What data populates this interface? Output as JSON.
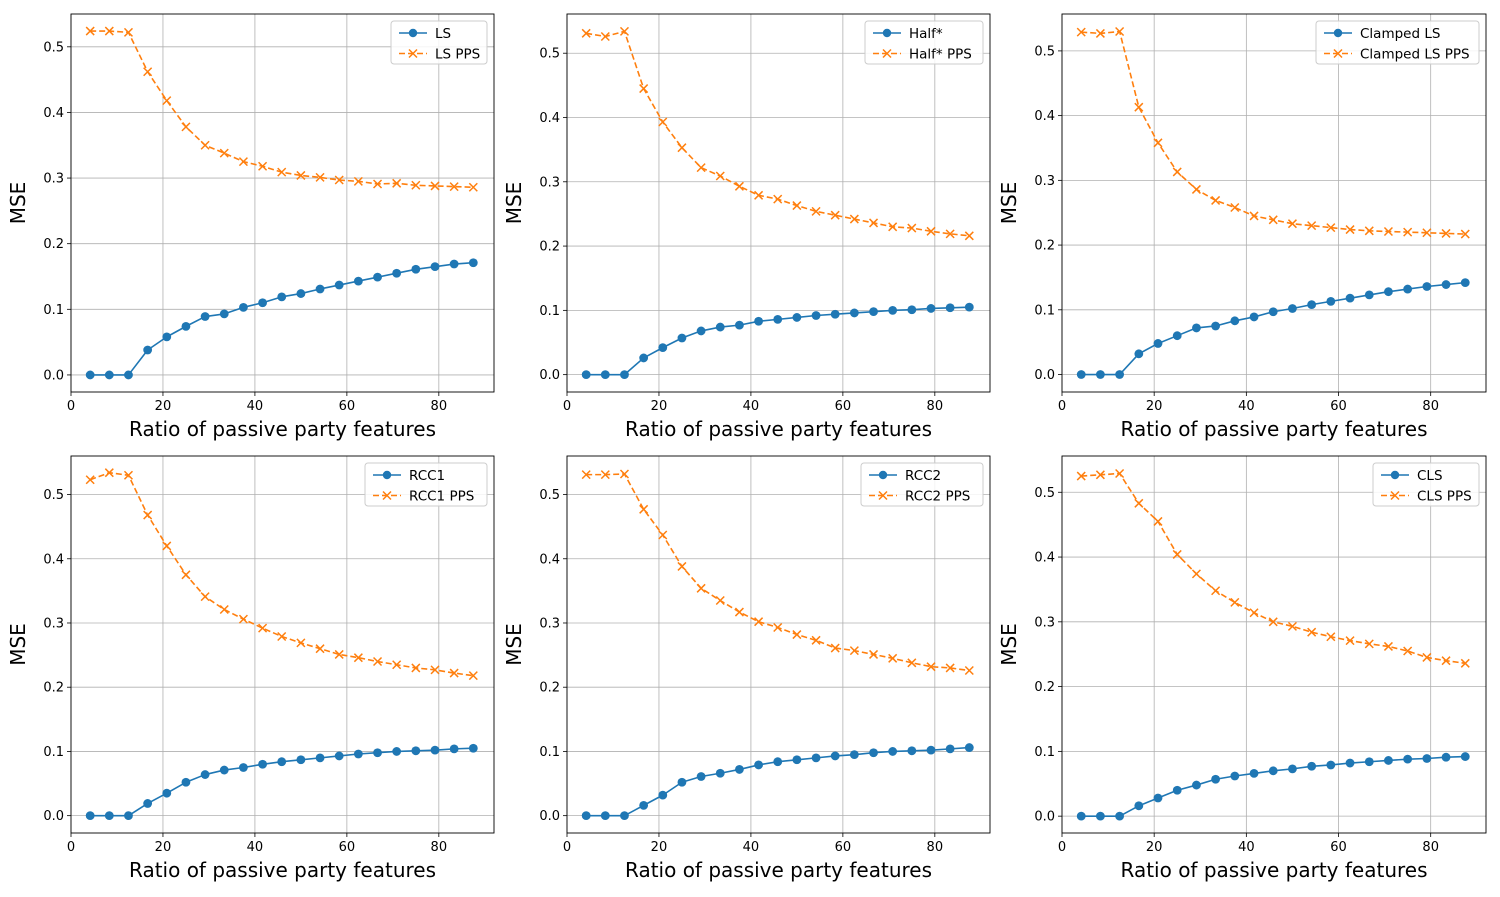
{
  "figure": {
    "colors": {
      "primary": "#1f77b4",
      "pps": "#ff7f0e",
      "grid": "#b0b0b0",
      "axis": "#000000"
    }
  },
  "chart_data": [
    {
      "type": "line",
      "xlabel": "Ratio of passive party features",
      "ylabel": "MSE",
      "xlim": [
        0,
        92
      ],
      "ylim": [
        -0.026,
        0.55
      ],
      "xticks": [
        0,
        20,
        40,
        60,
        80
      ],
      "yticks": [
        0.0,
        0.1,
        0.2,
        0.3,
        0.4,
        0.5
      ],
      "legend_position": "top-right",
      "x": [
        4.17,
        8.33,
        12.5,
        16.67,
        20.83,
        25,
        29.17,
        33.33,
        37.5,
        41.67,
        45.83,
        50,
        54.17,
        58.33,
        62.5,
        66.67,
        70.83,
        75,
        79.17,
        83.33,
        87.5
      ],
      "series": [
        {
          "name": "LS",
          "style": "solid",
          "marker": "o",
          "color": "#1f77b4",
          "values": [
            0.0,
            0.0,
            0.0,
            0.038,
            0.058,
            0.074,
            0.089,
            0.093,
            0.103,
            0.11,
            0.119,
            0.124,
            0.131,
            0.137,
            0.143,
            0.149,
            0.155,
            0.161,
            0.165,
            0.169,
            0.171
          ]
        },
        {
          "name": "LS PPS",
          "style": "dashed",
          "marker": "x",
          "color": "#ff7f0e",
          "values": [
            0.524,
            0.524,
            0.522,
            0.462,
            0.418,
            0.378,
            0.35,
            0.338,
            0.325,
            0.318,
            0.309,
            0.304,
            0.301,
            0.297,
            0.295,
            0.291,
            0.292,
            0.289,
            0.288,
            0.287,
            0.286
          ]
        }
      ]
    },
    {
      "type": "line",
      "xlabel": "Ratio of passive party features",
      "ylabel": "MSE",
      "xlim": [
        0,
        92
      ],
      "ylim": [
        -0.027,
        0.561
      ],
      "xticks": [
        0,
        20,
        40,
        60,
        80
      ],
      "yticks": [
        0.0,
        0.1,
        0.2,
        0.3,
        0.4,
        0.5
      ],
      "legend_position": "top-right",
      "x": [
        4.17,
        8.33,
        12.5,
        16.67,
        20.83,
        25,
        29.17,
        33.33,
        37.5,
        41.67,
        45.83,
        50,
        54.17,
        58.33,
        62.5,
        66.67,
        70.83,
        75,
        79.17,
        83.33,
        87.5
      ],
      "series": [
        {
          "name": "Half*",
          "style": "solid",
          "marker": "o",
          "color": "#1f77b4",
          "values": [
            0.0,
            0.0,
            0.0,
            0.026,
            0.042,
            0.057,
            0.068,
            0.074,
            0.077,
            0.083,
            0.086,
            0.089,
            0.092,
            0.094,
            0.096,
            0.098,
            0.1,
            0.101,
            0.103,
            0.104,
            0.105
          ]
        },
        {
          "name": "Half* PPS",
          "style": "dashed",
          "marker": "x",
          "color": "#ff7f0e",
          "values": [
            0.531,
            0.526,
            0.534,
            0.445,
            0.393,
            0.353,
            0.322,
            0.309,
            0.293,
            0.279,
            0.273,
            0.263,
            0.254,
            0.248,
            0.242,
            0.236,
            0.23,
            0.228,
            0.223,
            0.219,
            0.216
          ]
        }
      ]
    },
    {
      "type": "line",
      "xlabel": "Ratio of passive party features",
      "ylabel": "MSE",
      "xlim": [
        0,
        92
      ],
      "ylim": [
        -0.027,
        0.557
      ],
      "xticks": [
        0,
        20,
        40,
        60,
        80
      ],
      "yticks": [
        0.0,
        0.1,
        0.2,
        0.3,
        0.4,
        0.5
      ],
      "legend_position": "top-right",
      "x": [
        4.17,
        8.33,
        12.5,
        16.67,
        20.83,
        25,
        29.17,
        33.33,
        37.5,
        41.67,
        45.83,
        50,
        54.17,
        58.33,
        62.5,
        66.67,
        70.83,
        75,
        79.17,
        83.33,
        87.5
      ],
      "series": [
        {
          "name": "Clamped LS",
          "style": "solid",
          "marker": "o",
          "color": "#1f77b4",
          "values": [
            0.0,
            0.0,
            0.0,
            0.032,
            0.048,
            0.06,
            0.072,
            0.075,
            0.083,
            0.089,
            0.097,
            0.102,
            0.108,
            0.113,
            0.118,
            0.123,
            0.128,
            0.132,
            0.136,
            0.139,
            0.142
          ]
        },
        {
          "name": "Clamped LS PPS",
          "style": "dashed",
          "marker": "x",
          "color": "#ff7f0e",
          "values": [
            0.529,
            0.527,
            0.53,
            0.413,
            0.358,
            0.313,
            0.286,
            0.269,
            0.258,
            0.245,
            0.239,
            0.233,
            0.23,
            0.227,
            0.224,
            0.222,
            0.221,
            0.22,
            0.219,
            0.218,
            0.217
          ]
        }
      ]
    },
    {
      "type": "line",
      "xlabel": "Ratio of passive party features",
      "ylabel": "MSE",
      "xlim": [
        0,
        92
      ],
      "ylim": [
        -0.027,
        0.56
      ],
      "xticks": [
        0,
        20,
        40,
        60,
        80
      ],
      "yticks": [
        0.0,
        0.1,
        0.2,
        0.3,
        0.4,
        0.5
      ],
      "legend_position": "top-right",
      "x": [
        4.17,
        8.33,
        12.5,
        16.67,
        20.83,
        25,
        29.17,
        33.33,
        37.5,
        41.67,
        45.83,
        50,
        54.17,
        58.33,
        62.5,
        66.67,
        70.83,
        75,
        79.17,
        83.33,
        87.5
      ],
      "series": [
        {
          "name": "RCC1",
          "style": "solid",
          "marker": "o",
          "color": "#1f77b4",
          "values": [
            0.0,
            0.0,
            0.0,
            0.019,
            0.035,
            0.052,
            0.064,
            0.071,
            0.075,
            0.08,
            0.084,
            0.087,
            0.09,
            0.093,
            0.096,
            0.098,
            0.1,
            0.101,
            0.102,
            0.104,
            0.105
          ]
        },
        {
          "name": "RCC1 PPS",
          "style": "dashed",
          "marker": "x",
          "color": "#ff7f0e",
          "values": [
            0.523,
            0.534,
            0.53,
            0.468,
            0.42,
            0.375,
            0.341,
            0.321,
            0.306,
            0.292,
            0.279,
            0.269,
            0.26,
            0.251,
            0.246,
            0.24,
            0.235,
            0.23,
            0.227,
            0.222,
            0.218
          ]
        }
      ]
    },
    {
      "type": "line",
      "xlabel": "Ratio of passive party features",
      "ylabel": "MSE",
      "xlim": [
        0,
        92
      ],
      "ylim": [
        -0.027,
        0.56
      ],
      "xticks": [
        0,
        20,
        40,
        60,
        80
      ],
      "yticks": [
        0.0,
        0.1,
        0.2,
        0.3,
        0.4,
        0.5
      ],
      "legend_position": "top-right",
      "x": [
        4.17,
        8.33,
        12.5,
        16.67,
        20.83,
        25,
        29.17,
        33.33,
        37.5,
        41.67,
        45.83,
        50,
        54.17,
        58.33,
        62.5,
        66.67,
        70.83,
        75,
        79.17,
        83.33,
        87.5
      ],
      "series": [
        {
          "name": "RCC2",
          "style": "solid",
          "marker": "o",
          "color": "#1f77b4",
          "values": [
            0.0,
            0.0,
            0.0,
            0.016,
            0.032,
            0.052,
            0.061,
            0.066,
            0.072,
            0.079,
            0.084,
            0.087,
            0.09,
            0.093,
            0.095,
            0.098,
            0.1,
            0.101,
            0.102,
            0.104,
            0.106
          ]
        },
        {
          "name": "RCC2 PPS",
          "style": "dashed",
          "marker": "x",
          "color": "#ff7f0e",
          "values": [
            0.531,
            0.531,
            0.532,
            0.477,
            0.437,
            0.388,
            0.354,
            0.335,
            0.317,
            0.302,
            0.293,
            0.282,
            0.273,
            0.261,
            0.257,
            0.251,
            0.245,
            0.238,
            0.232,
            0.23,
            0.226
          ]
        }
      ]
    },
    {
      "type": "line",
      "xlabel": "Ratio of passive party features",
      "ylabel": "MSE",
      "xlim": [
        0,
        92
      ],
      "ylim": [
        -0.026,
        0.556
      ],
      "xticks": [
        0,
        20,
        40,
        60,
        80
      ],
      "yticks": [
        0.0,
        0.1,
        0.2,
        0.3,
        0.4,
        0.5
      ],
      "legend_position": "top-right",
      "x": [
        4.17,
        8.33,
        12.5,
        16.67,
        20.83,
        25,
        29.17,
        33.33,
        37.5,
        41.67,
        45.83,
        50,
        54.17,
        58.33,
        62.5,
        66.67,
        70.83,
        75,
        79.17,
        83.33,
        87.5
      ],
      "series": [
        {
          "name": "CLS",
          "style": "solid",
          "marker": "o",
          "color": "#1f77b4",
          "values": [
            0.0,
            0.0,
            0.0,
            0.016,
            0.028,
            0.04,
            0.048,
            0.057,
            0.062,
            0.066,
            0.07,
            0.073,
            0.077,
            0.079,
            0.082,
            0.084,
            0.086,
            0.088,
            0.089,
            0.091,
            0.092
          ]
        },
        {
          "name": "CLS PPS",
          "style": "dashed",
          "marker": "x",
          "color": "#ff7f0e",
          "values": [
            0.525,
            0.527,
            0.529,
            0.483,
            0.455,
            0.404,
            0.374,
            0.348,
            0.33,
            0.314,
            0.3,
            0.293,
            0.284,
            0.277,
            0.271,
            0.266,
            0.262,
            0.255,
            0.245,
            0.24,
            0.236
          ]
        }
      ]
    }
  ]
}
